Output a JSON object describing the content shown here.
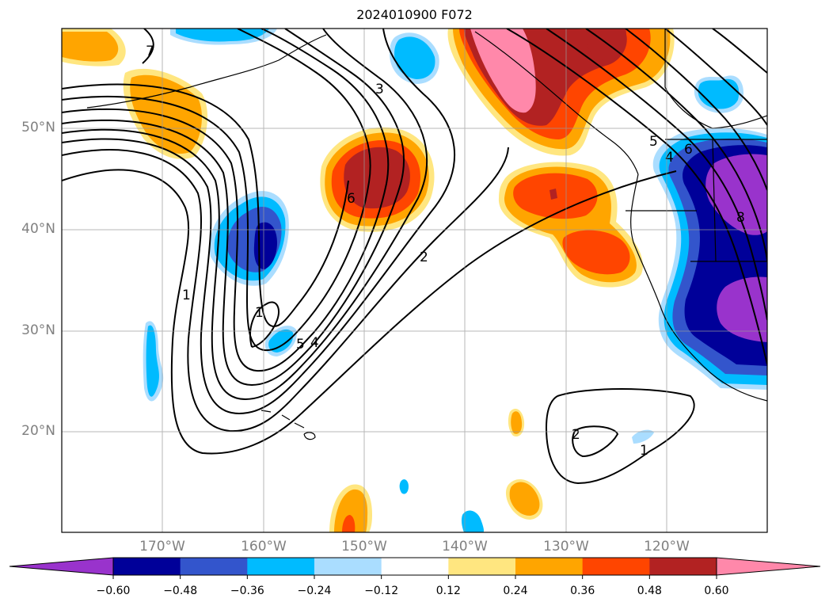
{
  "title": "2024010900 F072",
  "map": {
    "lat_labels": [
      "50°N",
      "40°N",
      "30°N",
      "20°N"
    ],
    "lon_labels": [
      "170°W",
      "160°W",
      "150°W",
      "140°W",
      "130°W",
      "120°W"
    ],
    "grid": true,
    "contour_labels": [
      "7",
      "3",
      "6",
      "2",
      "1",
      "1",
      "5",
      "4",
      "2",
      "1",
      "5",
      "4",
      "6",
      "8"
    ]
  },
  "colorbar": {
    "ticks": [
      "−0.60",
      "−0.48",
      "−0.36",
      "−0.24",
      "−0.12",
      "0.12",
      "0.24",
      "0.36",
      "0.48",
      "0.60"
    ],
    "colors": [
      "#9933cc",
      "#000099",
      "#3355cc",
      "#00bbff",
      "#aaddff",
      "#ffffff",
      "#ffe680",
      "#ffa500",
      "#ff4500",
      "#b22222",
      "#ff88aa"
    ],
    "extend": "both"
  },
  "colors": {
    "purple": "#9933cc",
    "navy": "#000099",
    "blue": "#3355cc",
    "cyan": "#00bbff",
    "lightblue": "#aaddff",
    "lightyellow": "#ffe680",
    "orange": "#ffa500",
    "redorange": "#ff4500",
    "darkred": "#b22222",
    "pink": "#ff88aa"
  }
}
